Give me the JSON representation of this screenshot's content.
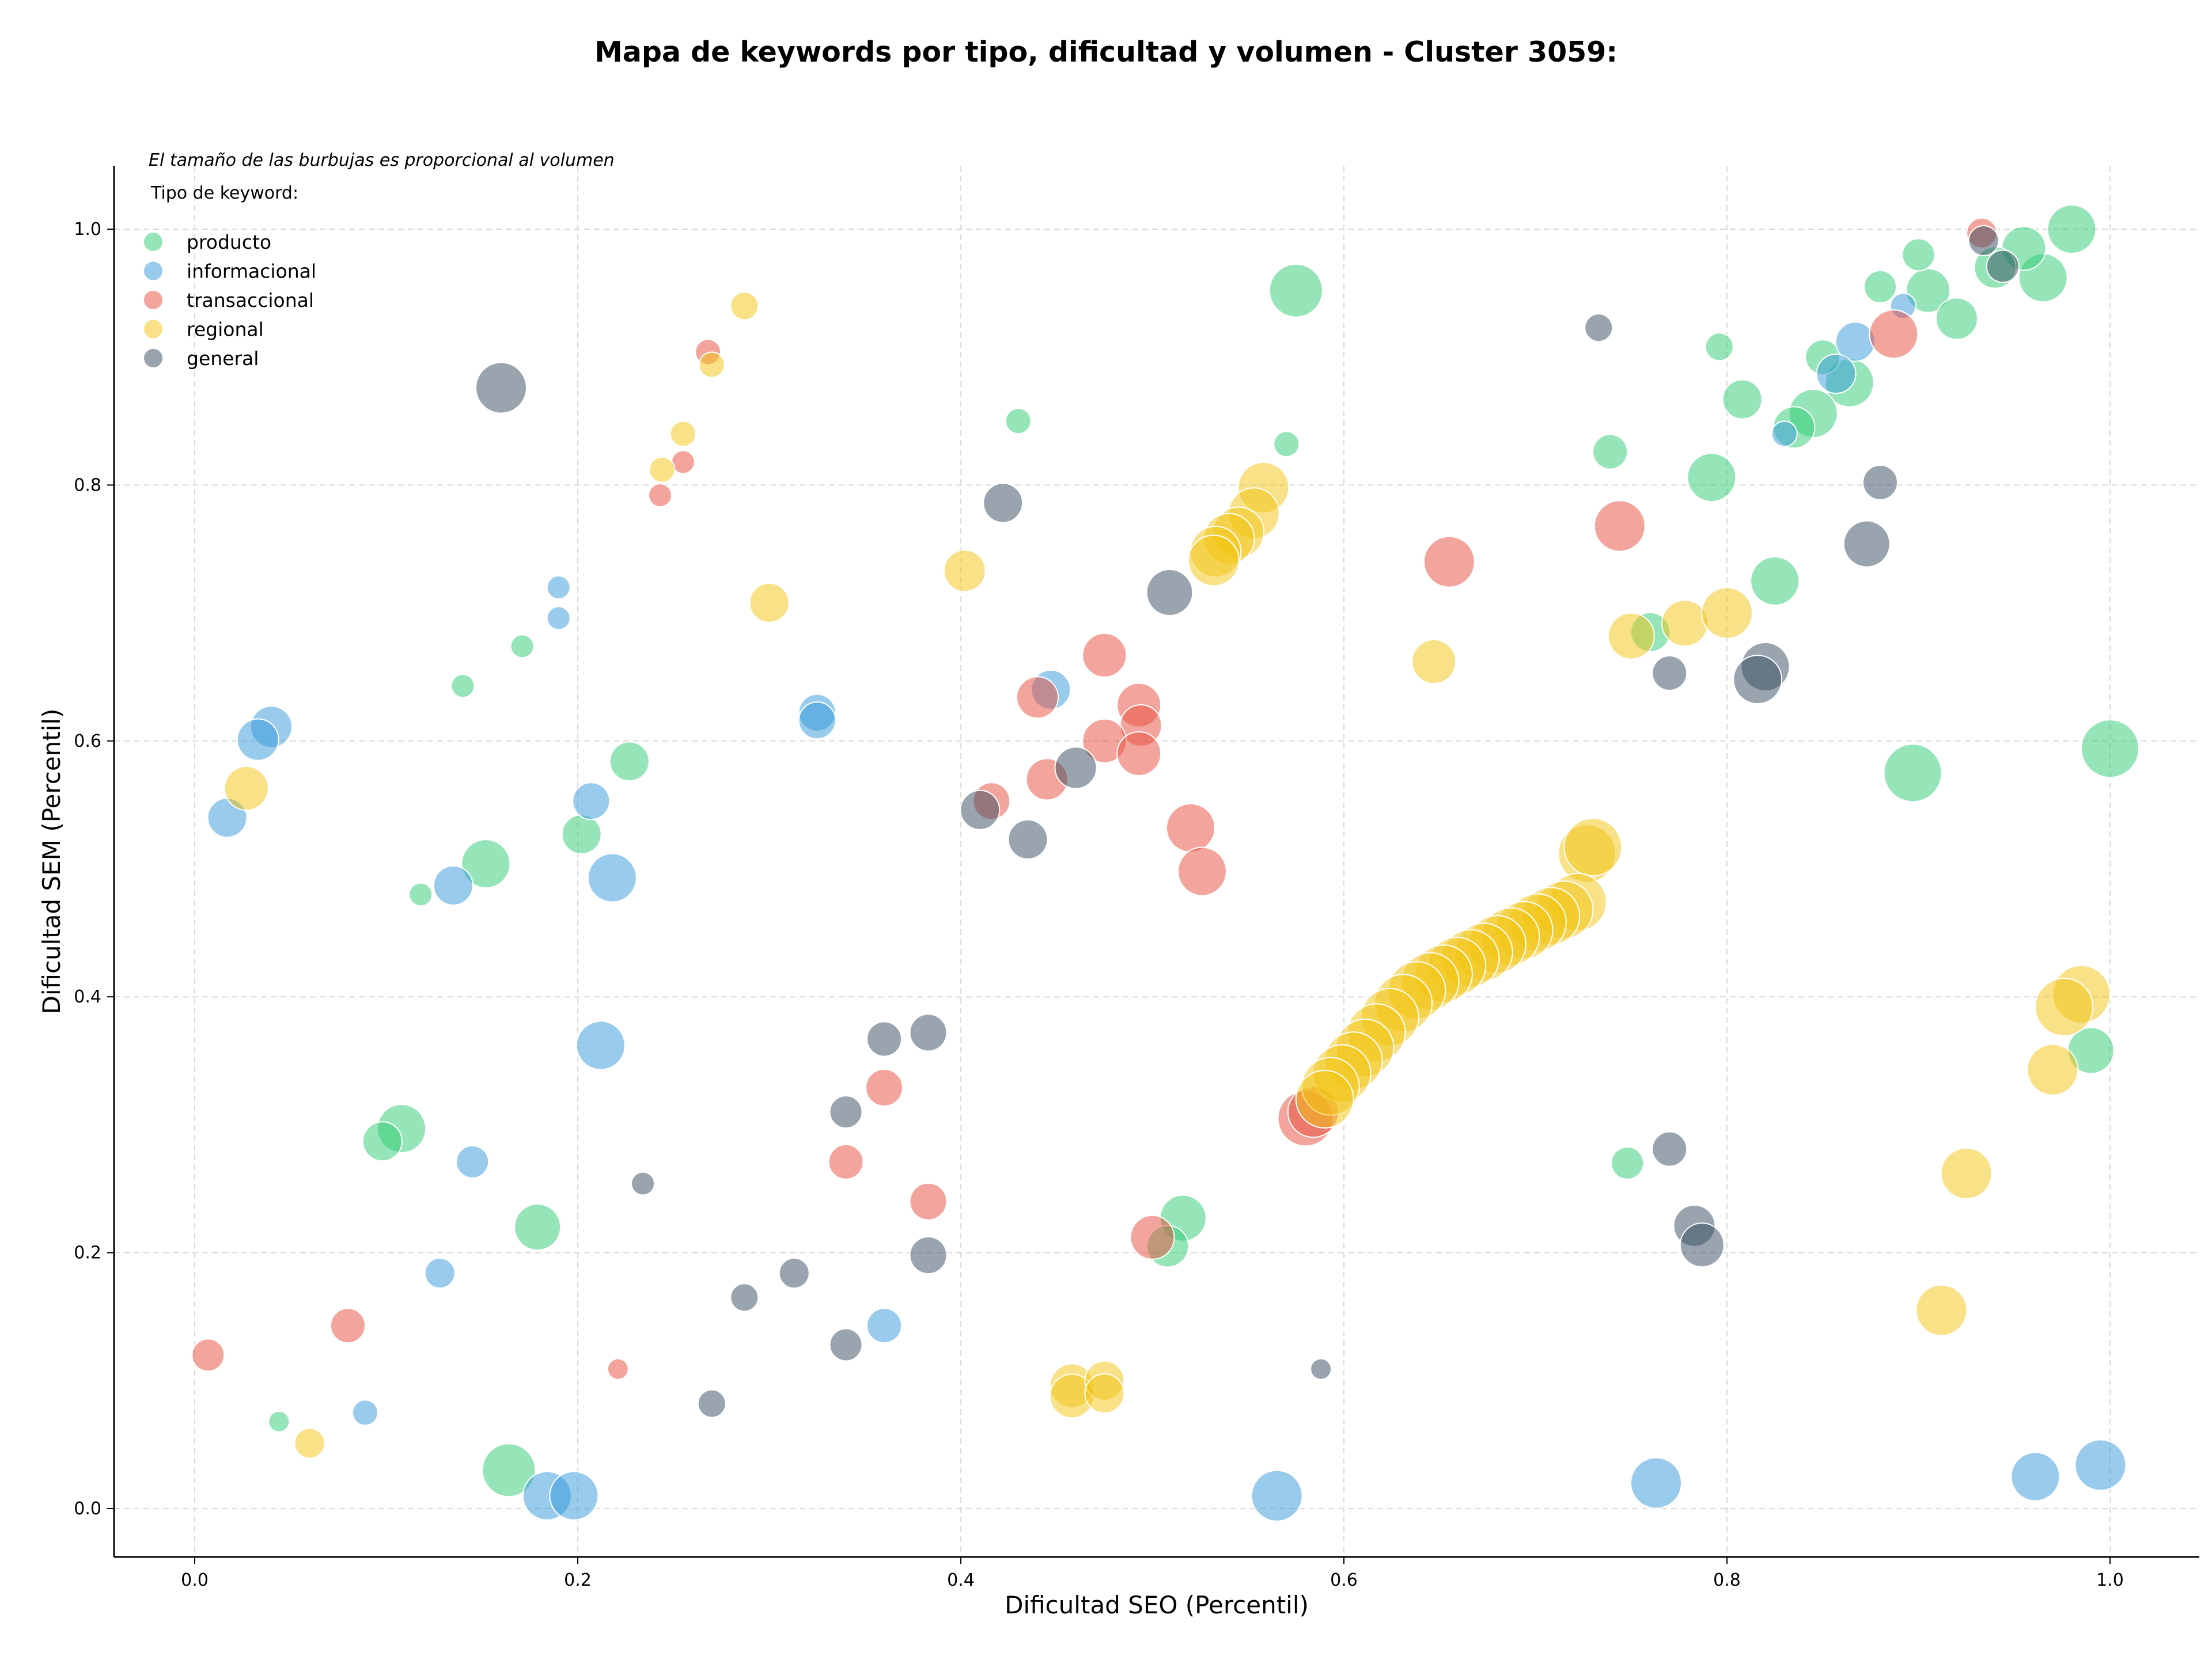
{
  "chart_data": {
    "type": "scatter",
    "title": "Mapa de keywords por tipo, dificultad y volumen - Cluster 3059:",
    "xlabel": "Dificultad SEO (Percentil)",
    "ylabel": "Dificultad SEM (Percentil)",
    "xlim": [
      -0.04,
      1.05
    ],
    "ylim": [
      -0.04,
      1.05
    ],
    "xticks": [
      "0.0",
      "0.2",
      "0.4",
      "0.6",
      "0.8",
      "1.0"
    ],
    "yticks": [
      "0.0",
      "0.2",
      "0.4",
      "0.6",
      "0.8",
      "1.0"
    ],
    "grid": true,
    "note": "El tamaño de las burbujas es proporcional al volumen",
    "legend_title": "Tipo de keyword:",
    "legend_position": "top-left",
    "series": [
      {
        "name": "producto",
        "color": "#2ecc71",
        "points": [
          [
            0.575,
            0.952,
            46
          ],
          [
            0.98,
            1.0,
            42
          ],
          [
            0.965,
            0.962,
            42
          ],
          [
            0.955,
            0.985,
            38
          ],
          [
            0.94,
            0.97,
            36
          ],
          [
            0.905,
            0.952,
            38
          ],
          [
            0.9,
            0.98,
            28
          ],
          [
            0.88,
            0.955,
            28
          ],
          [
            0.864,
            0.88,
            42
          ],
          [
            0.85,
            0.9,
            30
          ],
          [
            0.845,
            0.856,
            42
          ],
          [
            0.835,
            0.845,
            36
          ],
          [
            0.92,
            0.93,
            36
          ],
          [
            0.808,
            0.867,
            34
          ],
          [
            0.792,
            0.806,
            42
          ],
          [
            0.796,
            0.908,
            24
          ],
          [
            0.739,
            0.826,
            30
          ],
          [
            0.825,
            0.725,
            42
          ],
          [
            0.76,
            0.685,
            34
          ],
          [
            0.57,
            0.832,
            22
          ],
          [
            0.43,
            0.85,
            22
          ],
          [
            0.227,
            0.584,
            34
          ],
          [
            0.14,
            0.643,
            20
          ],
          [
            0.171,
            0.674,
            20
          ],
          [
            0.202,
            0.527,
            34
          ],
          [
            0.152,
            0.504,
            42
          ],
          [
            0.118,
            0.48,
            20
          ],
          [
            0.108,
            0.297,
            42
          ],
          [
            0.098,
            0.287,
            34
          ],
          [
            0.179,
            0.22,
            40
          ],
          [
            0.164,
            0.03,
            46
          ],
          [
            0.044,
            0.068,
            18
          ],
          [
            0.516,
            0.227,
            40
          ],
          [
            0.508,
            0.205,
            36
          ],
          [
            0.748,
            0.27,
            28
          ],
          [
            1.0,
            0.594,
            50
          ],
          [
            0.897,
            0.575,
            50
          ],
          [
            0.99,
            0.358,
            40
          ]
        ]
      },
      {
        "name": "informacional",
        "color": "#3498db",
        "points": [
          [
            0.04,
            0.611,
            36
          ],
          [
            0.033,
            0.601,
            36
          ],
          [
            0.017,
            0.54,
            34
          ],
          [
            0.19,
            0.72,
            20
          ],
          [
            0.19,
            0.696,
            20
          ],
          [
            0.207,
            0.553,
            32
          ],
          [
            0.218,
            0.493,
            42
          ],
          [
            0.135,
            0.487,
            34
          ],
          [
            0.212,
            0.362,
            42
          ],
          [
            0.145,
            0.271,
            28
          ],
          [
            0.128,
            0.184,
            26
          ],
          [
            0.089,
            0.075,
            22
          ],
          [
            0.184,
            0.01,
            42
          ],
          [
            0.198,
            0.01,
            42
          ],
          [
            0.325,
            0.622,
            32
          ],
          [
            0.325,
            0.616,
            32
          ],
          [
            0.447,
            0.64,
            34
          ],
          [
            0.36,
            0.143,
            30
          ],
          [
            0.565,
            0.01,
            44
          ],
          [
            0.763,
            0.02,
            44
          ],
          [
            0.961,
            0.025,
            42
          ],
          [
            0.995,
            0.034,
            44
          ],
          [
            0.867,
            0.912,
            34
          ],
          [
            0.857,
            0.887,
            34
          ],
          [
            0.892,
            0.94,
            22
          ],
          [
            0.83,
            0.84,
            22
          ]
        ]
      },
      {
        "name": "transaccional",
        "color": "#e74c3c",
        "points": [
          [
            0.268,
            0.904,
            22
          ],
          [
            0.255,
            0.818,
            20
          ],
          [
            0.243,
            0.792,
            20
          ],
          [
            0.475,
            0.667,
            38
          ],
          [
            0.44,
            0.634,
            36
          ],
          [
            0.493,
            0.628,
            38
          ],
          [
            0.494,
            0.612,
            36
          ],
          [
            0.475,
            0.6,
            38
          ],
          [
            0.493,
            0.59,
            38
          ],
          [
            0.445,
            0.57,
            36
          ],
          [
            0.416,
            0.553,
            32
          ],
          [
            0.52,
            0.532,
            42
          ],
          [
            0.526,
            0.498,
            42
          ],
          [
            0.36,
            0.329,
            32
          ],
          [
            0.34,
            0.271,
            30
          ],
          [
            0.383,
            0.24,
            32
          ],
          [
            0.5,
            0.212,
            38
          ],
          [
            0.08,
            0.143,
            30
          ],
          [
            0.007,
            0.12,
            28
          ],
          [
            0.221,
            0.109,
            18
          ],
          [
            0.655,
            0.74,
            44
          ],
          [
            0.744,
            0.768,
            44
          ],
          [
            0.887,
            0.918,
            42
          ],
          [
            0.933,
            0.997,
            26
          ],
          [
            0.58,
            0.305,
            48
          ],
          [
            0.584,
            0.31,
            44
          ]
        ]
      },
      {
        "name": "regional",
        "color": "#f1c40f",
        "points": [
          [
            0.287,
            0.94,
            24
          ],
          [
            0.27,
            0.894,
            22
          ],
          [
            0.255,
            0.84,
            22
          ],
          [
            0.244,
            0.812,
            22
          ],
          [
            0.3,
            0.708,
            34
          ],
          [
            0.402,
            0.733,
            36
          ],
          [
            0.027,
            0.563,
            38
          ],
          [
            0.06,
            0.051,
            26
          ],
          [
            0.458,
            0.096,
            38
          ],
          [
            0.458,
            0.088,
            38
          ],
          [
            0.475,
            0.1,
            34
          ],
          [
            0.475,
            0.09,
            34
          ],
          [
            0.558,
            0.798,
            44
          ],
          [
            0.553,
            0.778,
            44
          ],
          [
            0.545,
            0.763,
            44
          ],
          [
            0.54,
            0.758,
            44
          ],
          [
            0.533,
            0.748,
            44
          ],
          [
            0.532,
            0.741,
            44
          ],
          [
            0.647,
            0.662,
            38
          ],
          [
            0.75,
            0.682,
            40
          ],
          [
            0.778,
            0.692,
            40
          ],
          [
            0.8,
            0.7,
            44
          ],
          [
            0.727,
            0.512,
            50
          ],
          [
            0.73,
            0.517,
            50
          ],
          [
            0.722,
            0.474,
            50
          ],
          [
            0.715,
            0.468,
            50
          ],
          [
            0.708,
            0.463,
            50
          ],
          [
            0.701,
            0.458,
            50
          ],
          [
            0.694,
            0.452,
            50
          ],
          [
            0.687,
            0.447,
            50
          ],
          [
            0.68,
            0.441,
            50
          ],
          [
            0.673,
            0.435,
            50
          ],
          [
            0.666,
            0.43,
            50
          ],
          [
            0.659,
            0.424,
            50
          ],
          [
            0.652,
            0.418,
            50
          ],
          [
            0.645,
            0.412,
            50
          ],
          [
            0.638,
            0.405,
            50
          ],
          [
            0.631,
            0.395,
            50
          ],
          [
            0.624,
            0.384,
            50
          ],
          [
            0.617,
            0.372,
            50
          ],
          [
            0.611,
            0.36,
            50
          ],
          [
            0.605,
            0.35,
            50
          ],
          [
            0.599,
            0.34,
            50
          ],
          [
            0.593,
            0.33,
            50
          ],
          [
            0.59,
            0.32,
            50
          ],
          [
            0.985,
            0.402,
            50
          ],
          [
            0.976,
            0.392,
            50
          ],
          [
            0.97,
            0.343,
            44
          ],
          [
            0.925,
            0.262,
            44
          ],
          [
            0.912,
            0.155,
            44
          ]
        ]
      },
      {
        "name": "general",
        "color": "#34495e",
        "points": [
          [
            0.16,
            0.876,
            44
          ],
          [
            0.422,
            0.786,
            34
          ],
          [
            0.509,
            0.716,
            40
          ],
          [
            0.46,
            0.579,
            36
          ],
          [
            0.41,
            0.546,
            34
          ],
          [
            0.435,
            0.523,
            34
          ],
          [
            0.36,
            0.367,
            30
          ],
          [
            0.383,
            0.372,
            32
          ],
          [
            0.34,
            0.31,
            28
          ],
          [
            0.383,
            0.198,
            32
          ],
          [
            0.313,
            0.184,
            26
          ],
          [
            0.287,
            0.165,
            24
          ],
          [
            0.234,
            0.254,
            20
          ],
          [
            0.34,
            0.128,
            28
          ],
          [
            0.27,
            0.082,
            24
          ],
          [
            0.588,
            0.109,
            18
          ],
          [
            0.733,
            0.923,
            24
          ],
          [
            0.88,
            0.802,
            30
          ],
          [
            0.873,
            0.754,
            40
          ],
          [
            0.77,
            0.653,
            30
          ],
          [
            0.82,
            0.658,
            42
          ],
          [
            0.816,
            0.648,
            42
          ],
          [
            0.77,
            0.281,
            30
          ],
          [
            0.783,
            0.221,
            36
          ],
          [
            0.787,
            0.206,
            38
          ],
          [
            0.934,
            0.991,
            26
          ],
          [
            0.944,
            0.971,
            28
          ]
        ]
      }
    ]
  }
}
